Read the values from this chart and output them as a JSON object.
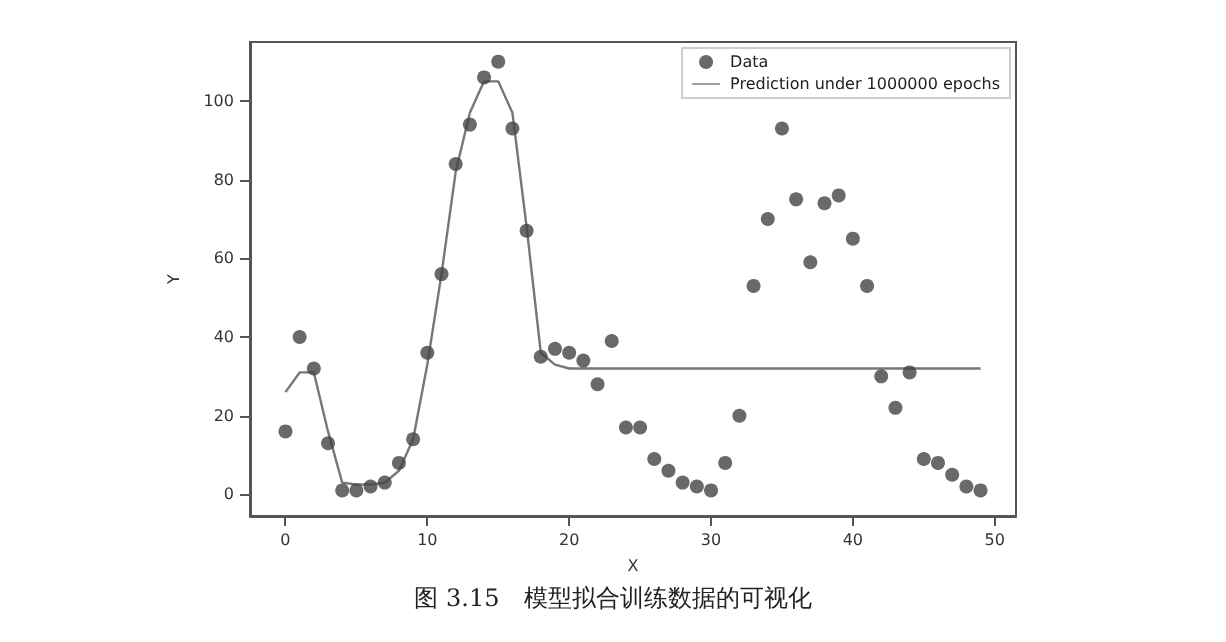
{
  "chart_data": {
    "type": "scatter",
    "xlabel": "X",
    "ylabel": "Y",
    "annotations": [
      "图 3.15　模型拟合训练数据的可视化"
    ],
    "x": [
      0,
      1,
      2,
      3,
      4,
      5,
      6,
      7,
      8,
      9,
      10,
      11,
      12,
      13,
      14,
      15,
      16,
      17,
      18,
      19,
      20,
      21,
      22,
      23,
      24,
      25,
      26,
      27,
      28,
      29,
      30,
      31,
      32,
      33,
      34,
      35,
      36,
      37,
      38,
      39,
      40,
      41,
      42,
      43,
      44,
      45,
      46,
      47,
      48,
      49
    ],
    "series": [
      {
        "name": "Data",
        "color": "#444444",
        "marker": "circle",
        "values": [
          16,
          40,
          32,
          13,
          1,
          1,
          2,
          3,
          8,
          14,
          36,
          56,
          84,
          94,
          106,
          110,
          93,
          67,
          35,
          37,
          36,
          34,
          28,
          39,
          17,
          17,
          9,
          6,
          3,
          2,
          1,
          8,
          20,
          53,
          70,
          93,
          75,
          59,
          74,
          76,
          65,
          53,
          30,
          22,
          31,
          9,
          8,
          5,
          2,
          1
        ]
      },
      {
        "name": "Prediction under 1000000 epochs",
        "type": "line",
        "color": "#777777",
        "marker": "none",
        "line_style": "solid",
        "values": [
          26,
          31,
          31,
          16,
          3,
          2.5,
          2.5,
          3,
          6,
          14,
          33,
          56,
          82,
          97,
          105,
          105,
          97,
          68,
          36,
          33,
          32,
          32,
          32,
          32,
          32,
          32,
          32,
          32,
          32,
          32,
          32,
          32,
          32,
          32,
          32,
          32,
          32,
          32,
          32,
          32,
          32,
          32,
          32,
          32,
          32,
          32,
          32,
          32,
          32,
          32
        ]
      }
    ],
    "xlim": [
      -2.5,
      51.5
    ],
    "xticks": [
      0,
      10,
      20,
      30,
      40,
      50
    ],
    "ylim": [
      -5.5,
      115
    ],
    "yticks": [
      0,
      20,
      40,
      60,
      80,
      100
    ],
    "grid": false,
    "legend": "top right"
  }
}
